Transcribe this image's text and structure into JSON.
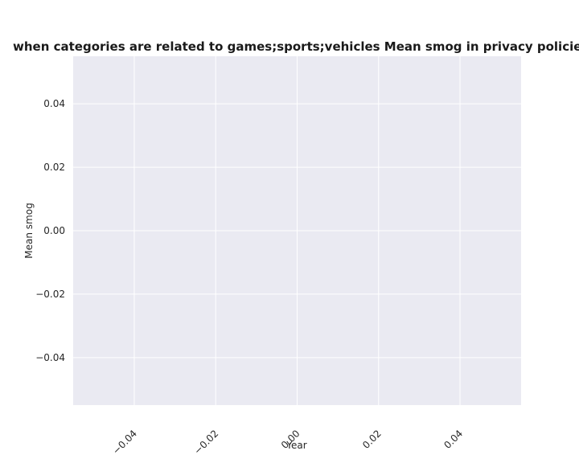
{
  "chart_data": {
    "type": "line",
    "title": "when categories are related to games;sports;vehicles Mean smog in privacy policies by Year",
    "xlabel": "Year",
    "ylabel": "Mean smog",
    "xlim": [
      -0.055,
      0.055
    ],
    "ylim": [
      -0.055,
      0.055
    ],
    "xticks": [
      -0.04,
      -0.02,
      0.0,
      0.02,
      0.04
    ],
    "xtick_labels": [
      "−0.04",
      "−0.02",
      "0.00",
      "0.02",
      "0.04"
    ],
    "yticks": [
      0.04,
      0.02,
      0.0,
      -0.02,
      -0.04
    ],
    "ytick_labels": [
      "0.04",
      "0.02",
      "0.00",
      "−0.02",
      "−0.04"
    ],
    "xtick_rotation": "45 degrees",
    "series": [],
    "grid": true,
    "colors": {
      "plot_background": "#eaeaf2",
      "grid": "#ffffff",
      "text": "#262626"
    }
  }
}
